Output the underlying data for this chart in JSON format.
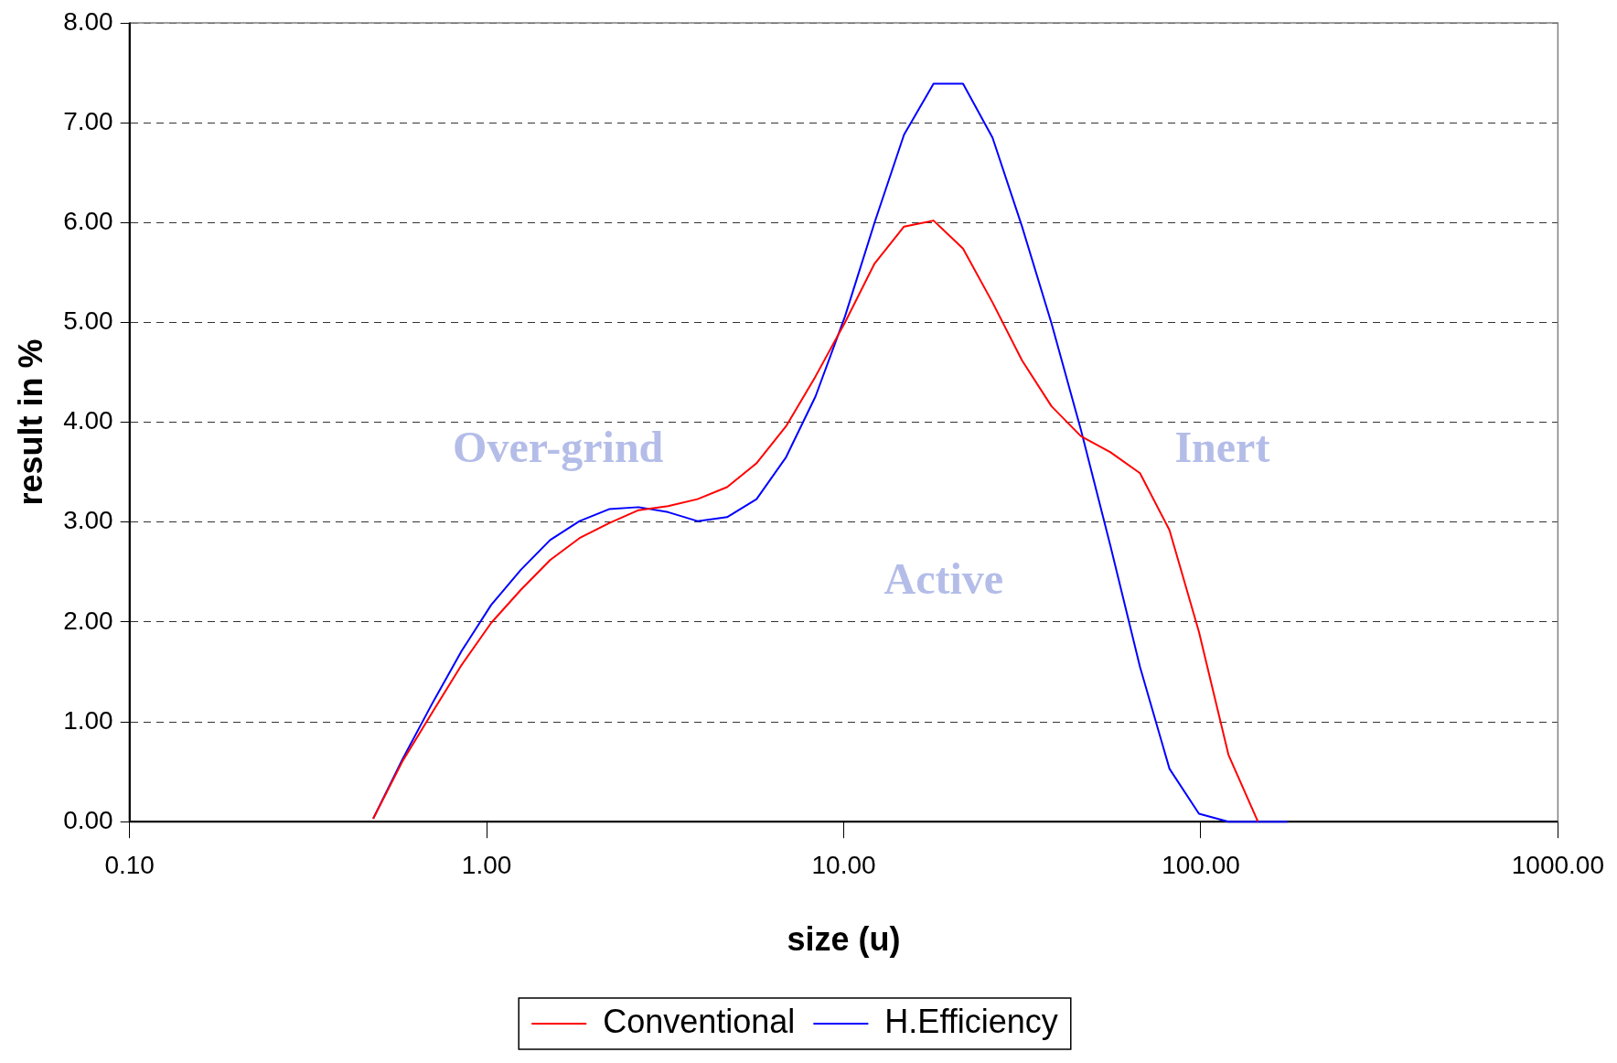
{
  "chart_data": {
    "type": "line",
    "xlabel": "size (u)",
    "ylabel": "result in %",
    "x": [
      0.481,
      0.582,
      0.703,
      0.851,
      1.029,
      1.245,
      1.505,
      1.82,
      2.202,
      2.663,
      3.221,
      3.895,
      4.712,
      5.699,
      6.893,
      8.337,
      10.08,
      12.2,
      14.75,
      17.84,
      21.58,
      26.1,
      31.57,
      38.18,
      46.18,
      55.85,
      67.55,
      81.7,
      98.8,
      119.5,
      144.5,
      174.8
    ],
    "series": [
      {
        "name": "Conventional",
        "color": "#ff0000",
        "values": [
          0.03,
          0.61,
          1.09,
          1.57,
          1.99,
          2.32,
          2.62,
          2.84,
          2.99,
          3.12,
          3.16,
          3.23,
          3.35,
          3.59,
          3.96,
          4.46,
          5.0,
          5.59,
          5.96,
          6.02,
          5.74,
          5.2,
          4.62,
          4.16,
          3.86,
          3.7,
          3.49,
          2.92,
          1.9,
          0.67,
          0,
          null
        ]
      },
      {
        "name": "H.Efficiency",
        "color": "#0000ff",
        "values": [
          0.03,
          0.63,
          1.18,
          1.71,
          2.17,
          2.52,
          2.82,
          3.01,
          3.13,
          3.15,
          3.1,
          3.01,
          3.05,
          3.23,
          3.65,
          4.26,
          5.06,
          6.0,
          6.88,
          7.39,
          7.39,
          6.85,
          5.96,
          4.99,
          3.92,
          2.76,
          1.55,
          0.53,
          0.08,
          0,
          0,
          0
        ]
      }
    ],
    "log": "x",
    "xlim": [
      0.1,
      1000
    ],
    "xticks": [
      {
        "value": 0.1,
        "label": "0.10"
      },
      {
        "value": 1,
        "label": "1.00"
      },
      {
        "value": 10,
        "label": "10.00"
      },
      {
        "value": 100,
        "label": "100.00"
      },
      {
        "value": 1000,
        "label": "1000.00"
      }
    ],
    "ylim": [
      0,
      8
    ],
    "yticks": [
      {
        "value": 0,
        "label": "0.00"
      },
      {
        "value": 1,
        "label": "1.00"
      },
      {
        "value": 2,
        "label": "2.00"
      },
      {
        "value": 3,
        "label": "3.00"
      },
      {
        "value": 4,
        "label": "4.00"
      },
      {
        "value": 5,
        "label": "5.00"
      },
      {
        "value": 6,
        "label": "6.00"
      },
      {
        "value": 7,
        "label": "7.00"
      },
      {
        "value": 8,
        "label": "8.00"
      }
    ],
    "grid": "y",
    "legend": "bottom",
    "marker": "none",
    "line_style": "solid",
    "annotations": [
      "Over-grind",
      "Inert",
      "Active"
    ]
  }
}
